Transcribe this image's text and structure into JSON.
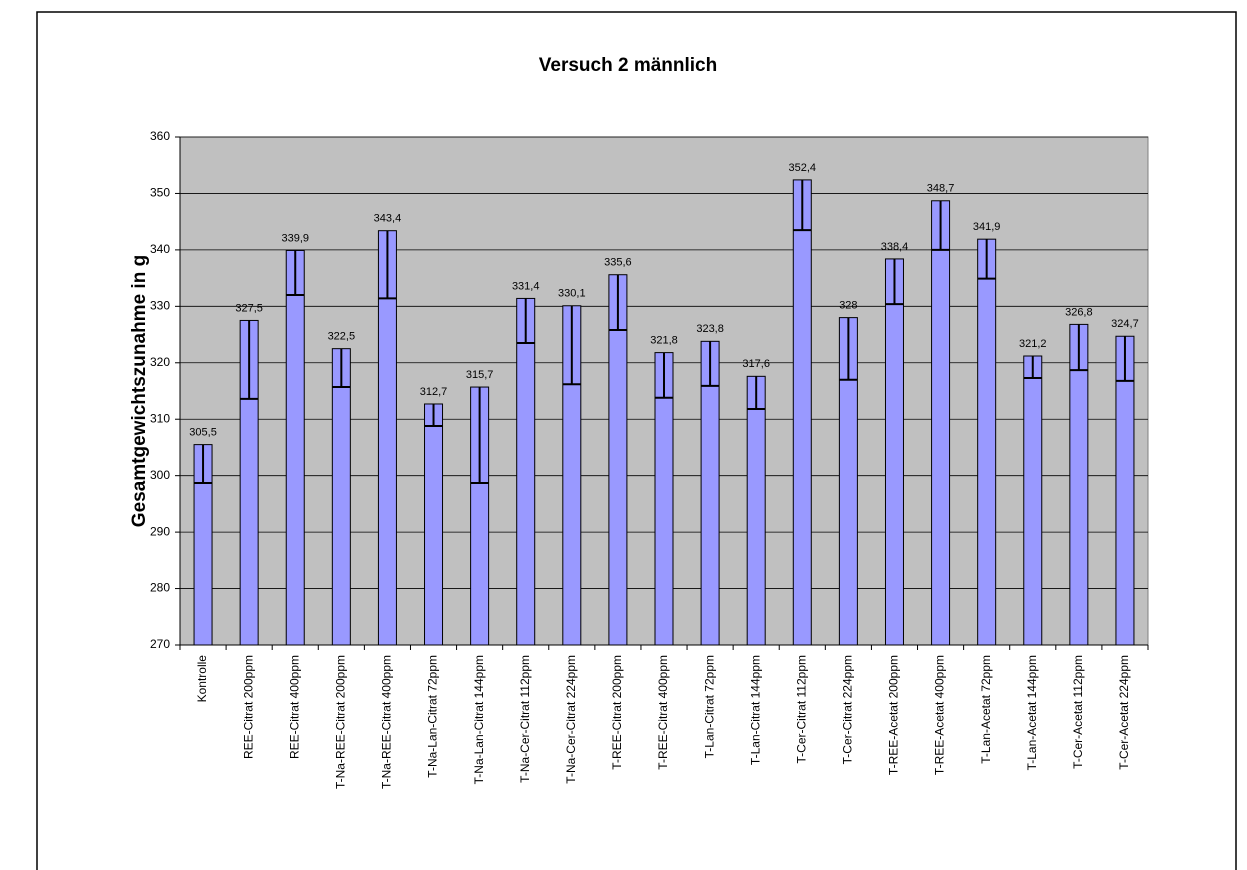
{
  "chart_data": {
    "type": "bar",
    "title": "Versuch 2 männlich",
    "y_label": "Gesamtgewichtszunahme in g",
    "categories": [
      "Kontrolle",
      "REE-Citrat 200ppm",
      "REE-Citrat 400ppm",
      "T-Na-REE-Citrat 200ppm",
      "T-Na-REE-Citrat 400ppm",
      "T-Na-Lan-Citrat 72ppm",
      "T-Na-Lan-Citrat 144ppm",
      "T-Na-Cer-Citrat 112ppm",
      "T-Na-Cer-Citrat 224ppm",
      "T-REE-Citrat 200ppm",
      "T-REE-Citrat 400ppm",
      "T-Lan-Citrat 72ppm",
      "T-Lan-Citrat 144ppm",
      "T-Cer-Citrat 112ppm",
      "T-Cer-Citrat 224ppm",
      "T-REE-Acetat 200ppm",
      "T-REE-Acetat 400ppm",
      "T-Lan-Acetat 72ppm",
      "T-Lan-Acetat 144ppm",
      "T-Cer-Acetat 112ppm",
      "T-Cer-Acetat 224ppm"
    ],
    "values": [
      305.5,
      327.5,
      339.9,
      322.5,
      343.4,
      312.7,
      315.7,
      331.4,
      330.1,
      335.6,
      321.8,
      323.8,
      317.6,
      352.4,
      328,
      338.4,
      348.7,
      341.9,
      321.2,
      326.8,
      324.7
    ],
    "value_labels": [
      "305,5",
      "327,5",
      "339,9",
      "322,5",
      "343,4",
      "312,7",
      "315,7",
      "331,4",
      "330,1",
      "335,6",
      "321,8",
      "323,8",
      "317,6",
      "352,4",
      "328",
      "338,4",
      "348,7",
      "341,9",
      "321,2",
      "326,8",
      "324,7"
    ],
    "errors": [
      6.8,
      13.9,
      7.9,
      6.8,
      12,
      3.9,
      17,
      7.9,
      13.9,
      9.8,
      8,
      7.9,
      5.8,
      8.9,
      11,
      8,
      8.7,
      7,
      3.9,
      8.1,
      7.9
    ],
    "color": "#9999ff",
    "plot_background": "#c0c0c0",
    "ylim": [
      270,
      360
    ],
    "yticks": [
      270,
      280,
      290,
      300,
      310,
      320,
      330,
      340,
      350,
      360
    ],
    "grid": true
  }
}
